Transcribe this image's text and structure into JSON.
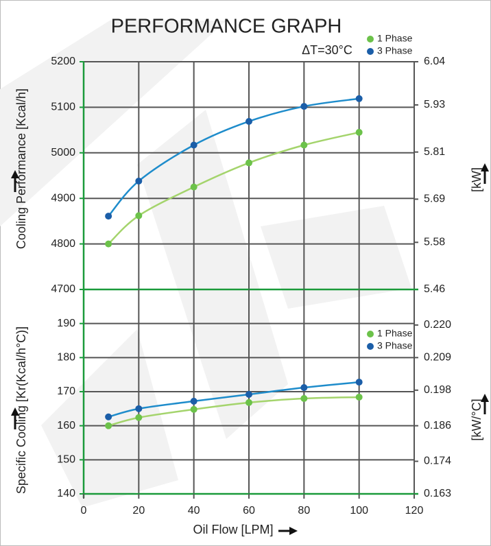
{
  "chart_data": [
    {
      "type": "line",
      "title": "PERFORMANCE GRAPH",
      "annotation": "ΔT=30°C",
      "ylabel": "Cooling Performance [Kcal/h]",
      "y2label": "[kW]",
      "x": [
        9,
        20,
        40,
        60,
        80,
        100
      ],
      "xlim": [
        0,
        120
      ],
      "ylim": [
        4700,
        5200
      ],
      "yticks": [
        4700,
        4800,
        4900,
        5000,
        5100,
        5200
      ],
      "y2lim": [
        5.46,
        6.04
      ],
      "y2ticks": [
        5.46,
        5.58,
        5.69,
        5.81,
        5.93,
        6.04
      ],
      "grid": true,
      "legend": "upper right",
      "series": [
        {
          "name": "1 Phase",
          "color": "#a4d46c",
          "marker_color": "#6cc24a",
          "values": [
            4800,
            4862,
            4925,
            4978,
            5017,
            5045
          ]
        },
        {
          "name": "3 Phase",
          "color": "#1e8ccb",
          "marker_color": "#1b5ea8",
          "values": [
            4861,
            4938,
            5017,
            5069,
            5102,
            5119
          ]
        }
      ]
    },
    {
      "type": "line",
      "xlabel": "Oil Flow [LPM]",
      "ylabel": "Specific Cooling [Kr(Kcal/h°C)]",
      "y2label": "[kW/°C]",
      "x": [
        9,
        20,
        40,
        60,
        80,
        100
      ],
      "xlim": [
        0,
        120
      ],
      "xticks": [
        0,
        20,
        40,
        60,
        80,
        100,
        120
      ],
      "ylim": [
        140,
        200
      ],
      "yticks": [
        140,
        150,
        160,
        170,
        180,
        190
      ],
      "y2lim": [
        0.163,
        0.232
      ],
      "y2ticks": [
        0.163,
        0.174,
        0.186,
        0.198,
        0.209,
        {
          "value": 0.22,
          "label": "0.220"
        }
      ],
      "grid": true,
      "legend": "upper right",
      "series": [
        {
          "name": "1 Phase",
          "color": "#a4d46c",
          "marker_color": "#6cc24a",
          "values": [
            160,
            162.4,
            164.8,
            166.8,
            168.0,
            168.4
          ]
        },
        {
          "name": "3 Phase",
          "color": "#1e8ccb",
          "marker_color": "#1b5ea8",
          "values": [
            162.6,
            165.0,
            167.2,
            169.2,
            171.2,
            172.8
          ]
        }
      ]
    }
  ]
}
